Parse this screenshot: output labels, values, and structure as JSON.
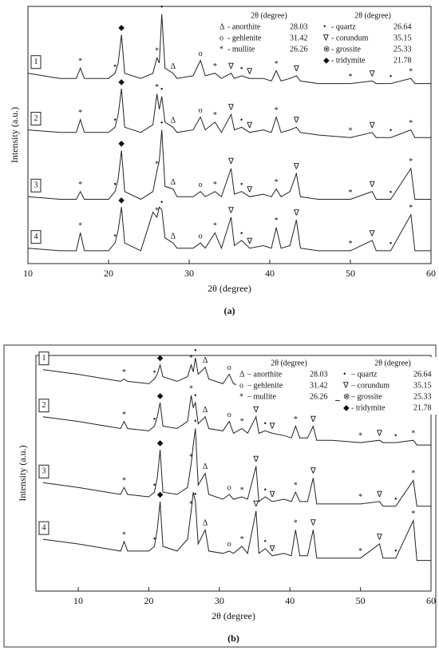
{
  "chart_data": [
    {
      "type": "line",
      "caption": "(a)",
      "xlabel": "2θ (degree)",
      "ylabel": "Intensity (a.u.)",
      "xlim": [
        10,
        60
      ],
      "xticks": [
        10,
        20,
        30,
        40,
        50,
        60
      ],
      "ylim": [
        0,
        100
      ],
      "color": "#222222",
      "legend_header": "2θ (degree)",
      "legend": [
        [
          {
            "symbol": "Δ",
            "label": "- anorthite",
            "value": 28.03
          },
          {
            "symbol": "o",
            "label": "- gehlenite",
            "value": 31.42
          },
          {
            "symbol": "*",
            "label": "- mullite",
            "value": 26.26
          }
        ],
        [
          {
            "symbol": "•",
            "label": "- quartz",
            "value": 26.64
          },
          {
            "symbol": "∇",
            "label": "- corundum",
            "value": 35.15
          },
          {
            "symbol": "⊗",
            "label": "- grossite",
            "value": 25.33
          },
          {
            "symbol": "◆",
            "label": "- tridymite",
            "value": 21.78
          }
        ]
      ],
      "peaks": [
        {
          "x": 16.5,
          "symbol": "*"
        },
        {
          "x": 20.8,
          "symbol": "•"
        },
        {
          "x": 21.6,
          "symbol": "◆"
        },
        {
          "x": 26,
          "symbol": "*"
        },
        {
          "x": 26.6,
          "symbol": "•"
        },
        {
          "x": 28,
          "symbol": "Δ"
        },
        {
          "x": 31.4,
          "symbol": "o"
        },
        {
          "x": 33.2,
          "symbol": "*"
        },
        {
          "x": 35.2,
          "symbol": "∇"
        },
        {
          "x": 36.5,
          "symbol": "•"
        },
        {
          "x": 37.5,
          "symbol": "∇"
        },
        {
          "x": 40.8,
          "symbol": "*"
        },
        {
          "x": 43.3,
          "symbol": "∇"
        },
        {
          "x": 50,
          "symbol": "*"
        },
        {
          "x": 52.7,
          "symbol": "∇"
        },
        {
          "x": 55,
          "symbol": "•"
        },
        {
          "x": 57.5,
          "symbol": "*"
        }
      ],
      "x": [
        10,
        14,
        16,
        16.5,
        17,
        20,
        20.8,
        21.2,
        21.6,
        22,
        24,
        25.5,
        26,
        26.3,
        26.6,
        27,
        28,
        28.5,
        30.5,
        31.4,
        32,
        33.2,
        34,
        35.2,
        35.6,
        36.5,
        37.5,
        39.2,
        40.2,
        40.8,
        41.4,
        42.5,
        43.3,
        43.8,
        46,
        50,
        52.7,
        53.2,
        55,
        57.5,
        58,
        60
      ],
      "series": [
        {
          "name": "1",
          "values": [
            74,
            72,
            72,
            76,
            72,
            72,
            74,
            78,
            89,
            74,
            72,
            74,
            80,
            78,
            97,
            76,
            74,
            72,
            73,
            79,
            73,
            74,
            72,
            74,
            72,
            73,
            72,
            72,
            71,
            75,
            71,
            72,
            73,
            71,
            70,
            70,
            71,
            70,
            70,
            72,
            70,
            70
          ]
        },
        {
          "name": "2",
          "values": [
            52,
            51,
            51,
            56,
            51,
            51,
            53,
            58,
            68,
            53,
            51,
            54,
            66,
            60,
            65,
            55,
            53,
            51,
            52,
            57,
            52,
            55,
            51,
            58,
            52,
            53,
            51,
            52,
            51,
            57,
            51,
            52,
            53,
            51,
            50,
            49,
            51,
            49,
            49,
            52,
            49,
            49
          ]
        },
        {
          "name": "3",
          "values": [
            26,
            25,
            25,
            28,
            25,
            25,
            28,
            33,
            44,
            28,
            25,
            28,
            36,
            40,
            52,
            30,
            29,
            26,
            26,
            28,
            26,
            28,
            26,
            37,
            27,
            28,
            26,
            27,
            26,
            29,
            26,
            28,
            35,
            26,
            25,
            25,
            28,
            25,
            25,
            37,
            25,
            25
          ]
        },
        {
          "name": "4",
          "values": [
            6,
            5,
            5,
            12,
            5,
            5,
            8,
            13,
            22,
            8,
            5,
            20,
            18,
            22,
            21,
            10,
            8,
            6,
            6,
            8,
            6,
            12,
            6,
            18,
            7,
            9,
            6,
            7,
            6,
            14,
            6,
            7,
            17,
            6,
            5,
            5,
            9,
            5,
            5,
            19,
            5,
            5
          ]
        }
      ]
    },
    {
      "type": "line",
      "caption": "(b)",
      "xlabel": "2θ (degree)",
      "ylabel": "Intensity (a.u.)",
      "xlim": [
        4,
        60
      ],
      "xticks": [
        10,
        20,
        30,
        40,
        50,
        60
      ],
      "ylim": [
        0,
        100
      ],
      "color": "#222222",
      "legend_header": "2θ (degree)",
      "legend": [
        [
          {
            "symbol": "Δ",
            "label": "– anorthite",
            "value": 28.03
          },
          {
            "symbol": "o",
            "label": "– gehlenite",
            "value": 31.42
          },
          {
            "symbol": "*",
            "label": "– mullite",
            "value": 26.26
          }
        ],
        [
          {
            "symbol": "•",
            "label": "– quartz",
            "value": 26.64
          },
          {
            "symbol": "∇",
            "label": "– corundum",
            "value": 35.15
          },
          {
            "symbol": "⊗",
            "label": "– grossite",
            "value": 25.33
          },
          {
            "symbol": "◆",
            "label": "- tridymite",
            "value": 21.78
          }
        ]
      ],
      "peaks": [
        {
          "x": 16.5,
          "symbol": "*"
        },
        {
          "x": 20.8,
          "symbol": "•"
        },
        {
          "x": 21.6,
          "symbol": "◆"
        },
        {
          "x": 26,
          "symbol": "*"
        },
        {
          "x": 26.6,
          "symbol": "•"
        },
        {
          "x": 28,
          "symbol": "Δ"
        },
        {
          "x": 31.4,
          "symbol": "o"
        },
        {
          "x": 33.2,
          "symbol": "*"
        },
        {
          "x": 35.2,
          "symbol": "∇"
        },
        {
          "x": 36.5,
          "symbol": "•"
        },
        {
          "x": 37.5,
          "symbol": "∇"
        },
        {
          "x": 40.8,
          "symbol": "*"
        },
        {
          "x": 43.3,
          "symbol": "∇"
        },
        {
          "x": 50,
          "symbol": "*"
        },
        {
          "x": 52.7,
          "symbol": "∇"
        },
        {
          "x": 55,
          "symbol": "•"
        },
        {
          "x": 57.5,
          "symbol": "*"
        }
      ],
      "x": [
        5,
        10,
        14,
        16,
        16.5,
        17,
        20,
        20.8,
        21.2,
        21.6,
        22,
        24,
        25.5,
        26,
        26.3,
        26.6,
        27,
        28,
        28.5,
        30.5,
        31.4,
        32,
        33.2,
        34,
        35.2,
        35.6,
        36.5,
        37.5,
        39.2,
        40.2,
        40.8,
        41.4,
        42.5,
        43.3,
        43.8,
        46,
        50,
        52.7,
        53.2,
        55,
        57.5,
        58,
        60
      ],
      "series": [
        {
          "name": "1",
          "values": [
            94,
            92,
            90,
            89,
            90,
            89,
            88,
            90,
            92,
            96,
            91,
            89,
            91,
            96,
            93,
            99,
            92,
            95,
            90,
            88,
            92,
            88,
            87,
            86,
            87,
            85,
            85,
            84,
            84,
            83,
            84,
            82,
            82,
            83,
            81,
            81,
            80,
            80,
            79,
            79,
            79,
            78,
            78
          ]
        },
        {
          "name": "2",
          "values": [
            74,
            72,
            70,
            69,
            72,
            69,
            68,
            70,
            74,
            80,
            70,
            69,
            72,
            83,
            78,
            80,
            71,
            74,
            69,
            68,
            72,
            67,
            69,
            67,
            74,
            67,
            68,
            67,
            66,
            65,
            70,
            65,
            65,
            70,
            64,
            64,
            63,
            64,
            63,
            63,
            64,
            62,
            62
          ]
        },
        {
          "name": "3",
          "values": [
            46,
            44,
            42,
            41,
            44,
            41,
            40,
            42,
            48,
            60,
            42,
            41,
            44,
            54,
            62,
            69,
            45,
            50,
            41,
            39,
            41,
            39,
            40,
            39,
            53,
            38,
            40,
            38,
            39,
            38,
            42,
            38,
            38,
            48,
            37,
            37,
            37,
            38,
            36,
            36,
            47,
            36,
            36
          ]
        },
        {
          "name": "4",
          "values": [
            22,
            20,
            18,
            17,
            21,
            17,
            17,
            19,
            26,
            38,
            19,
            17,
            22,
            34,
            42,
            38,
            20,
            26,
            17,
            16,
            17,
            16,
            19,
            16,
            34,
            16,
            18,
            15,
            16,
            15,
            26,
            15,
            15,
            26,
            14,
            14,
            14,
            20,
            14,
            14,
            30,
            13,
            13
          ]
        }
      ]
    }
  ]
}
